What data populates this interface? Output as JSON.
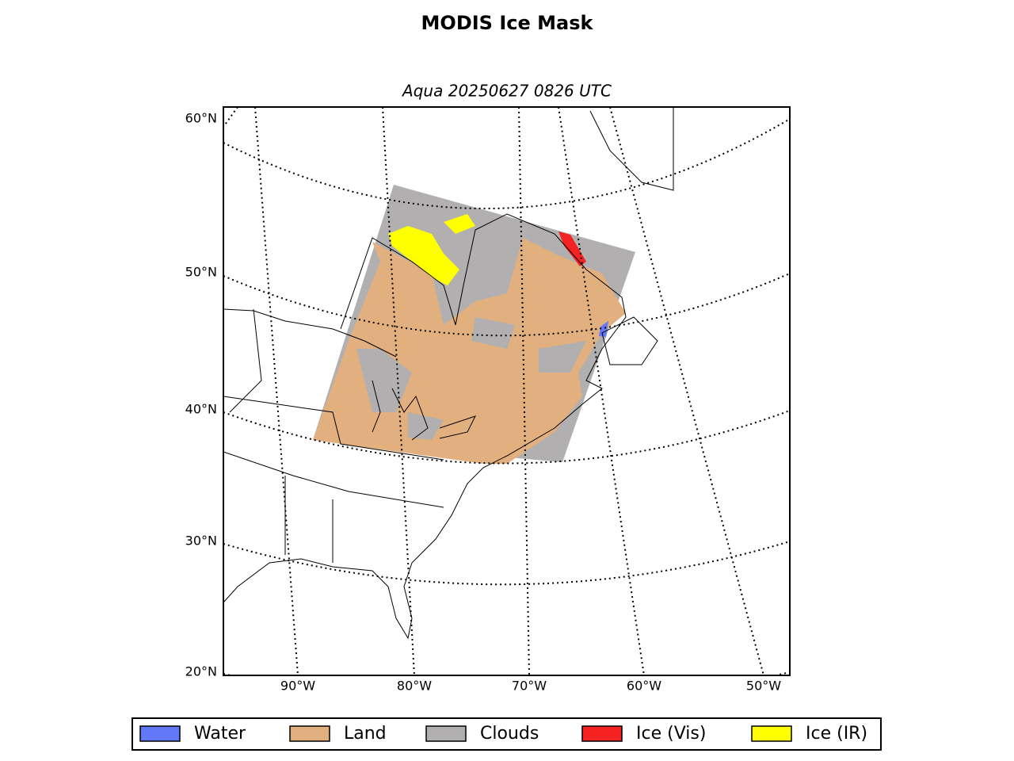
{
  "title": "MODIS Ice Mask",
  "subtitle": "Aqua 20250627 0826 UTC",
  "lat_labels": [
    "60°N",
    "50°N",
    "40°N",
    "30°N",
    "20°N"
  ],
  "lon_labels": [
    "90°W",
    "80°W",
    "70°W",
    "60°W",
    "50°W"
  ],
  "legend": [
    {
      "label": "Water",
      "color": "#6378f7"
    },
    {
      "label": "Land",
      "color": "#e2b07e"
    },
    {
      "label": "Clouds",
      "color": "#b1afaf"
    },
    {
      "label": "Ice (Vis)",
      "color": "#f42222"
    },
    {
      "label": "Ice (IR)",
      "color": "#ffff00"
    }
  ]
}
